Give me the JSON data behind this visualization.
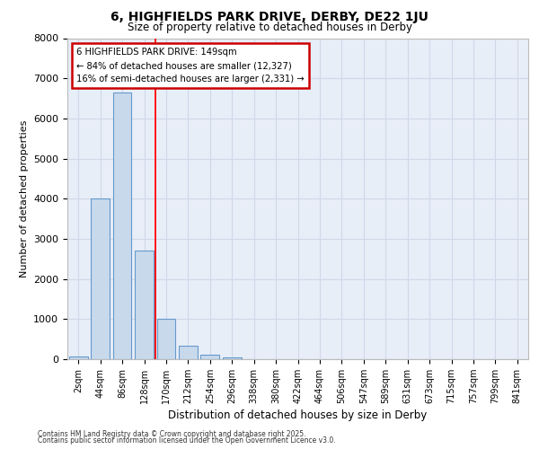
{
  "title1": "6, HIGHFIELDS PARK DRIVE, DERBY, DE22 1JU",
  "title2": "Size of property relative to detached houses in Derby",
  "xlabel": "Distribution of detached houses by size in Derby",
  "ylabel": "Number of detached properties",
  "categories": [
    "2sqm",
    "44sqm",
    "86sqm",
    "128sqm",
    "170sqm",
    "212sqm",
    "254sqm",
    "296sqm",
    "338sqm",
    "380sqm",
    "422sqm",
    "464sqm",
    "506sqm",
    "547sqm",
    "589sqm",
    "631sqm",
    "673sqm",
    "715sqm",
    "757sqm",
    "799sqm",
    "841sqm"
  ],
  "values": [
    60,
    4000,
    6650,
    2700,
    1000,
    340,
    120,
    50,
    0,
    0,
    0,
    0,
    0,
    0,
    0,
    0,
    0,
    0,
    0,
    0,
    0
  ],
  "bar_color": "#c8d9ec",
  "bar_edge_color": "#6699cc",
  "grid_color": "#d0d8e8",
  "bg_color": "#e8eef8",
  "red_line_x": 3.5,
  "annotation_title": "6 HIGHFIELDS PARK DRIVE: 149sqm",
  "annotation_line1": "← 84% of detached houses are smaller (12,327)",
  "annotation_line2": "16% of semi-detached houses are larger (2,331) →",
  "annotation_box_color": "#ffffff",
  "annotation_border_color": "#cc0000",
  "footer1": "Contains HM Land Registry data © Crown copyright and database right 2025.",
  "footer2": "Contains public sector information licensed under the Open Government Licence v3.0.",
  "ylim": [
    0,
    8000
  ],
  "yticks": [
    0,
    1000,
    2000,
    3000,
    4000,
    5000,
    6000,
    7000,
    8000
  ]
}
